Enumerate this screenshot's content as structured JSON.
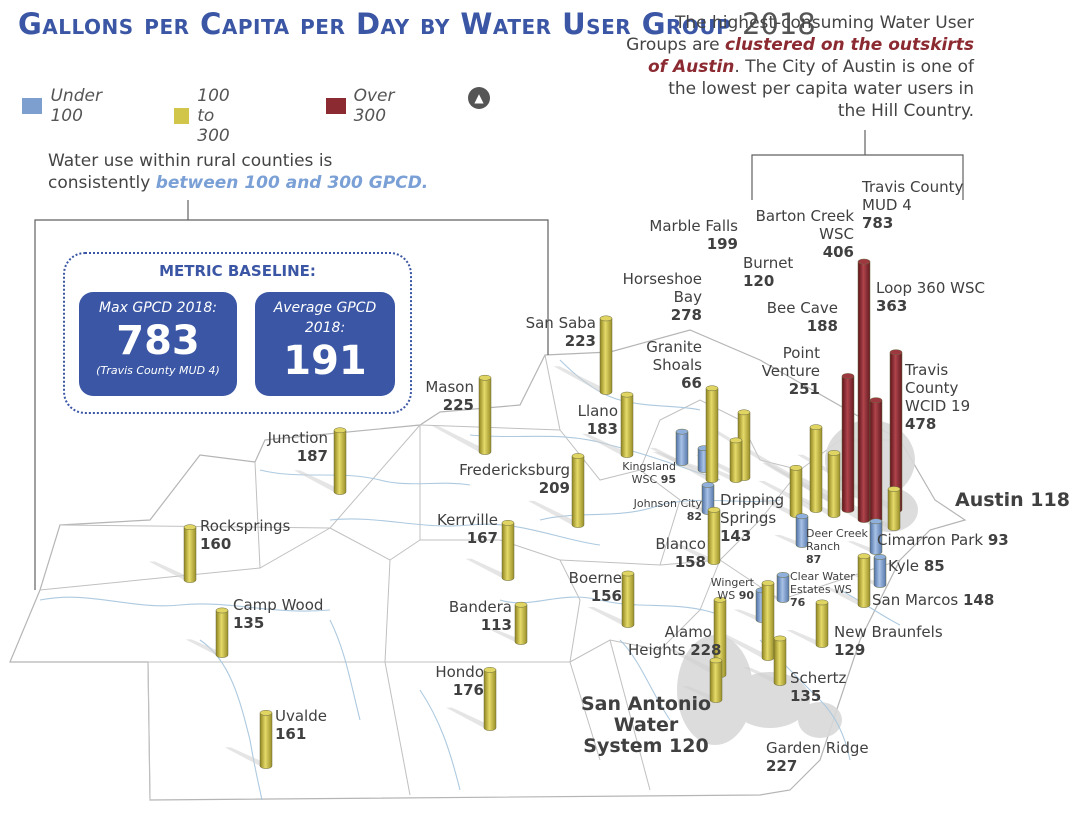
{
  "title": {
    "main": "Gallons per Capita per Day by Water User Group",
    "year": "2018"
  },
  "legend": [
    {
      "label": "Under 100",
      "color": "#7d9fcf"
    },
    {
      "label": "100 to 300",
      "color": "#d2c64a"
    },
    {
      "label": "Over 300",
      "color": "#8c2a31"
    }
  ],
  "north_icon": "north-arrow-icon",
  "callout": {
    "line1": "The highest-consuming Water User",
    "pre": "Groups are ",
    "em1": "clustered on the outskirts",
    "em2": "of Austin",
    "post": ". The City of Austin is one of",
    "line4": "the lowest per capita water users in",
    "line5": "the Hill Country."
  },
  "rural_note": {
    "line1": "Water use within rural counties is",
    "pre": "consistently ",
    "em": "between 100 and 300 GPCD."
  },
  "metric_baseline": {
    "heading": "METRIC BASELINE:",
    "max_label": "Max GPCD 2018:",
    "max_value": "783",
    "max_note": "(Travis County MUD 4)",
    "avg_label": "Average GPCD 2018:",
    "avg_value": "191"
  },
  "map_data": {
    "unit": "GPCD",
    "groups": [
      {
        "name": "Travis County MUD 4",
        "gpcd": 783
      },
      {
        "name": "Barton Creek WSC",
        "gpcd": 406
      },
      {
        "name": "Travis County WCID 19",
        "gpcd": 478
      },
      {
        "name": "Loop 360 WSC",
        "gpcd": 363
      },
      {
        "name": "Point Venture",
        "gpcd": 251
      },
      {
        "name": "Marble Falls",
        "gpcd": 199
      },
      {
        "name": "Burnet",
        "gpcd": 120
      },
      {
        "name": "Horseshoe Bay",
        "gpcd": 278
      },
      {
        "name": "Bee Cave",
        "gpcd": 188
      },
      {
        "name": "Granite Shoals",
        "gpcd": 66
      },
      {
        "name": "San Saba",
        "gpcd": 223
      },
      {
        "name": "Mason",
        "gpcd": 225
      },
      {
        "name": "Llano",
        "gpcd": 183
      },
      {
        "name": "Junction",
        "gpcd": 187
      },
      {
        "name": "Fredericksburg",
        "gpcd": 209
      },
      {
        "name": "Kingsland WSC",
        "gpcd": 95
      },
      {
        "name": "Johnson City",
        "gpcd": 82
      },
      {
        "name": "Dripping Springs",
        "gpcd": 143
      },
      {
        "name": "Deer Creek Ranch",
        "gpcd": 87
      },
      {
        "name": "Austin",
        "gpcd": 118
      },
      {
        "name": "Cimarron Park",
        "gpcd": 93
      },
      {
        "name": "Kyle",
        "gpcd": 85
      },
      {
        "name": "Rocksprings",
        "gpcd": 160
      },
      {
        "name": "Kerrville",
        "gpcd": 167
      },
      {
        "name": "Blanco",
        "gpcd": 158
      },
      {
        "name": "Boerne",
        "gpcd": 156
      },
      {
        "name": "Wingert WS",
        "gpcd": 90
      },
      {
        "name": "Clear Water Estates WS",
        "gpcd": 76
      },
      {
        "name": "San Marcos",
        "gpcd": 148
      },
      {
        "name": "Camp Wood",
        "gpcd": 135
      },
      {
        "name": "Bandera",
        "gpcd": 113
      },
      {
        "name": "New Braunfels",
        "gpcd": 129
      },
      {
        "name": "Alamo Heights",
        "gpcd": 228
      },
      {
        "name": "Hondo",
        "gpcd": 176
      },
      {
        "name": "Schertz",
        "gpcd": 135
      },
      {
        "name": "San Antonio Water System",
        "gpcd": 120
      },
      {
        "name": "Uvalde",
        "gpcd": 161
      },
      {
        "name": "Garden Ridge",
        "gpcd": 227
      }
    ]
  },
  "labels": {
    "travis_mud4": {
      "l1": "Travis County",
      "l2": "MUD 4"
    },
    "barton_creek": {
      "l1": "Barton Creek",
      "l2": "WSC"
    },
    "travis_wcid19": {
      "l1": "Travis",
      "l2": "County",
      "l3": "WCID 19"
    },
    "loop360": {
      "l1": "Loop 360 WSC"
    },
    "point_venture": {
      "l1": "Point",
      "l2": "Venture"
    },
    "marble_falls": {
      "l1": "Marble Falls"
    },
    "burnet": {
      "l1": "Burnet"
    },
    "horseshoe_bay": {
      "l1": "Horseshoe",
      "l2": "Bay"
    },
    "bee_cave": {
      "l1": "Bee Cave"
    },
    "granite_shoals": {
      "l1": "Granite",
      "l2": "Shoals"
    },
    "san_saba": {
      "l1": "San Saba"
    },
    "mason": {
      "l1": "Mason"
    },
    "llano": {
      "l1": "Llano"
    },
    "junction": {
      "l1": "Junction"
    },
    "fredericksburg": {
      "l1": "Fredericksburg"
    },
    "kingsland": {
      "l1": "Kingsland",
      "l2": "WSC"
    },
    "johnson_city": {
      "l1": "Johnson City"
    },
    "dripping_springs": {
      "l1": "Dripping",
      "l2": "Springs"
    },
    "deer_creek": {
      "l1": "Deer Creek",
      "l2": "Ranch"
    },
    "austin": {
      "l1": "Austin"
    },
    "cimarron": {
      "l1": "Cimarron Park"
    },
    "kyle": {
      "l1": "Kyle"
    },
    "rocksprings": {
      "l1": "Rocksprings"
    },
    "kerrville": {
      "l1": "Kerrville"
    },
    "blanco": {
      "l1": "Blanco"
    },
    "boerne": {
      "l1": "Boerne"
    },
    "wingert": {
      "l1": "Wingert",
      "l2": "WS"
    },
    "clear_water": {
      "l1": "Clear Water",
      "l2": "Estates WS"
    },
    "san_marcos": {
      "l1": "San Marcos"
    },
    "camp_wood": {
      "l1": "Camp Wood"
    },
    "bandera": {
      "l1": "Bandera"
    },
    "new_braunfels": {
      "l1": "New Braunfels"
    },
    "alamo_heights": {
      "l1": "Alamo",
      "l2": "Heights"
    },
    "hondo": {
      "l1": "Hondo"
    },
    "schertz": {
      "l1": "Schertz"
    },
    "sa_water": {
      "l1": "San Antonio",
      "l2": "Water",
      "l3": "System"
    },
    "uvalde": {
      "l1": "Uvalde"
    },
    "garden_ridge": {
      "l1": "Garden Ridge"
    }
  }
}
